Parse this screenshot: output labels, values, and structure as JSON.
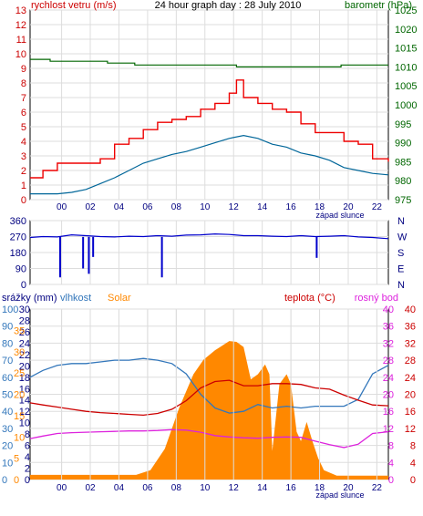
{
  "chart_data": [
    {
      "type": "line",
      "title": "24 hour graph day : 28 July 2010",
      "y_left_label": "rychlost vetru (m/s)",
      "y_right_label": "barometr (hPa)",
      "x_tick_labels": [
        "00",
        "02",
        "04",
        "06",
        "08",
        "10",
        "12",
        "14",
        "16",
        "18",
        "20",
        "22"
      ],
      "x_extra_label": "západ slunce",
      "y_left_ticks": [
        0,
        1,
        2,
        3,
        4,
        5,
        6,
        7,
        8,
        9,
        10,
        11,
        12,
        13
      ],
      "y_right_ticks": [
        975,
        980,
        985,
        990,
        995,
        1000,
        1005,
        1010,
        1015,
        1020,
        1025
      ],
      "ylim_left": [
        0,
        13
      ],
      "ylim_right": [
        975,
        1025
      ],
      "grid": true,
      "series": [
        {
          "name": "gust",
          "color": "#ee0000",
          "x": [
            -1.9,
            -1,
            0,
            1,
            2,
            3,
            4,
            5,
            6,
            7,
            8,
            9,
            10,
            11,
            12,
            12.5,
            13,
            14,
            15,
            16,
            17,
            18,
            19,
            20,
            21,
            22,
            23.1
          ],
          "y": [
            1.5,
            2.0,
            2.5,
            2.5,
            2.5,
            2.8,
            3.8,
            4.2,
            4.8,
            5.3,
            5.5,
            5.7,
            6.2,
            6.6,
            7.3,
            8.2,
            7.0,
            6.6,
            6.2,
            6.0,
            5.2,
            4.6,
            4.6,
            4.0,
            3.8,
            2.8,
            2.6
          ]
        },
        {
          "name": "avg",
          "color": "#006699",
          "x": [
            -1.9,
            -1,
            0,
            1,
            2,
            3,
            4,
            5,
            6,
            7,
            8,
            9,
            10,
            11,
            12,
            13,
            14,
            15,
            16,
            17,
            18,
            19,
            20,
            21,
            22,
            23.1
          ],
          "y": [
            0.4,
            0.4,
            0.4,
            0.5,
            0.7,
            1.1,
            1.5,
            2.0,
            2.5,
            2.8,
            3.1,
            3.3,
            3.6,
            3.9,
            4.2,
            4.4,
            4.2,
            3.8,
            3.6,
            3.2,
            3.0,
            2.7,
            2.2,
            2.0,
            1.8,
            1.7
          ]
        },
        {
          "name": "pressure",
          "color": "#006600",
          "x": [
            -1.9,
            -0.5,
            -0.5,
            3.5,
            3.5,
            5.4,
            5.4,
            12.5,
            12.5,
            19.8,
            19.8,
            23.1
          ],
          "y": [
            1012,
            1012,
            1011.5,
            1011.5,
            1011,
            1011,
            1010.5,
            1010.5,
            1010,
            1010,
            1010.5,
            1010.5
          ]
        }
      ]
    },
    {
      "type": "line",
      "y_left_label": "wind direction (deg)",
      "y_left_ticks": [
        0,
        90,
        180,
        270,
        360
      ],
      "y_right_ticks": [
        "N",
        "W",
        "S",
        "E",
        "N"
      ],
      "ylim": [
        0,
        360
      ],
      "grid": true,
      "series": [
        {
          "name": "direction",
          "color": "#0000cc",
          "x": [
            -1.9,
            -1,
            0,
            1,
            2,
            3,
            4,
            5,
            6,
            7,
            8,
            9,
            10,
            11,
            12,
            13,
            14,
            15,
            16,
            17,
            18,
            19,
            20,
            21,
            22,
            23.1
          ],
          "y": [
            265,
            270,
            268,
            280,
            275,
            270,
            268,
            272,
            270,
            275,
            272,
            278,
            280,
            285,
            282,
            275,
            275,
            272,
            270,
            275,
            270,
            272,
            275,
            268,
            265,
            258
          ],
          "spikes": [
            {
              "x": 0.2,
              "y": 40
            },
            {
              "x": 1.8,
              "y": 90
            },
            {
              "x": 2.2,
              "y": 60
            },
            {
              "x": 2.5,
              "y": 155
            },
            {
              "x": 7.3,
              "y": 40
            },
            {
              "x": 18.1,
              "y": 150
            }
          ]
        }
      ]
    },
    {
      "type": "line",
      "y_labels": [
        "srážky (mm)",
        "vlhkost",
        "Solar",
        "teplota (°C)",
        "rosný bod"
      ],
      "x_tick_labels": [
        "00",
        "02",
        "04",
        "06",
        "08",
        "10",
        "12",
        "14",
        "16",
        "18",
        "20",
        "22"
      ],
      "x_extra_label": "západ slunce",
      "y_ticks_rain": [
        0,
        2,
        4,
        6,
        8,
        10,
        12,
        14,
        16,
        18,
        20,
        22,
        24,
        26,
        28,
        30
      ],
      "y_ticks_humidity": [
        0,
        10,
        20,
        30,
        40,
        50,
        60,
        70,
        80,
        90,
        100
      ],
      "y_ticks_solar": [
        0,
        5,
        10,
        15,
        20,
        25,
        30,
        35
      ],
      "y_ticks_temp": [
        0,
        4,
        8,
        12,
        16,
        20,
        24,
        28,
        32,
        36,
        40
      ],
      "ylim_temp": [
        0,
        40
      ],
      "ylim_humidity": [
        0,
        100
      ],
      "ylim_solar": [
        0,
        40
      ],
      "grid": true,
      "series": [
        {
          "name": "solar",
          "color": "#ff8800",
          "x": [
            -1.9,
            5.5,
            6.5,
            7.5,
            8.5,
            9.5,
            10.2,
            11,
            12,
            12.5,
            13,
            13.5,
            14,
            14.5,
            14.8,
            15,
            15.5,
            16,
            16.3,
            16.7,
            17,
            17.4,
            17.8,
            18.2,
            18.6,
            19.5,
            23.1
          ],
          "y": [
            1.1,
            1.1,
            2.2,
            7.2,
            16.8,
            24.7,
            28.1,
            30.3,
            32.5,
            32.3,
            31.1,
            23.5,
            24.7,
            27.0,
            24.7,
            6.7,
            22.4,
            24.7,
            22.4,
            11.2,
            9.0,
            13.5,
            9.0,
            5.0,
            2.2,
            0.9,
            0.9
          ]
        },
        {
          "name": "humidity",
          "color": "#3377bb",
          "x": [
            -1.9,
            -1,
            0,
            1,
            2,
            3,
            4,
            5,
            6,
            7,
            8,
            9,
            10,
            11,
            12,
            13,
            14,
            15,
            16,
            17,
            18,
            19,
            20,
            21,
            22,
            23.1
          ],
          "y": [
            60,
            64,
            67,
            68,
            68,
            69,
            70,
            70,
            71,
            70,
            68,
            62,
            50,
            42,
            39,
            40,
            44,
            42,
            43,
            42,
            43,
            43,
            43,
            47,
            62,
            67
          ]
        },
        {
          "name": "temperature",
          "color": "#cc0000",
          "x": [
            -1.9,
            -1,
            0,
            1,
            2,
            3,
            4,
            5,
            6,
            7,
            8,
            9,
            10,
            11,
            12,
            13,
            14,
            15,
            16,
            17,
            18,
            19,
            20,
            21,
            22,
            23.1
          ],
          "y": [
            18.0,
            17.5,
            17.0,
            16.5,
            16.0,
            15.7,
            15.5,
            15.3,
            15.1,
            15.5,
            16.5,
            18.5,
            21.5,
            23.0,
            23.3,
            22.0,
            22.0,
            22.5,
            22.5,
            22.3,
            21.5,
            21.2,
            19.8,
            18.6,
            17.5,
            17.3
          ]
        },
        {
          "name": "dew point",
          "color": "#dd22dd",
          "x": [
            -1.9,
            -1,
            0,
            1,
            2,
            3,
            4,
            5,
            6,
            7,
            8,
            9,
            10,
            11,
            12,
            13,
            14,
            15,
            16,
            17,
            18,
            19,
            20,
            21,
            22,
            23.1
          ],
          "y": [
            9.6,
            10.2,
            10.8,
            11.0,
            11.1,
            11.2,
            11.3,
            11.4,
            11.4,
            11.5,
            11.7,
            11.6,
            11.1,
            10.3,
            10.0,
            9.8,
            9.7,
            9.9,
            10.0,
            9.9,
            9.0,
            8.2,
            7.5,
            8.3,
            10.8,
            11.2
          ]
        }
      ]
    }
  ]
}
